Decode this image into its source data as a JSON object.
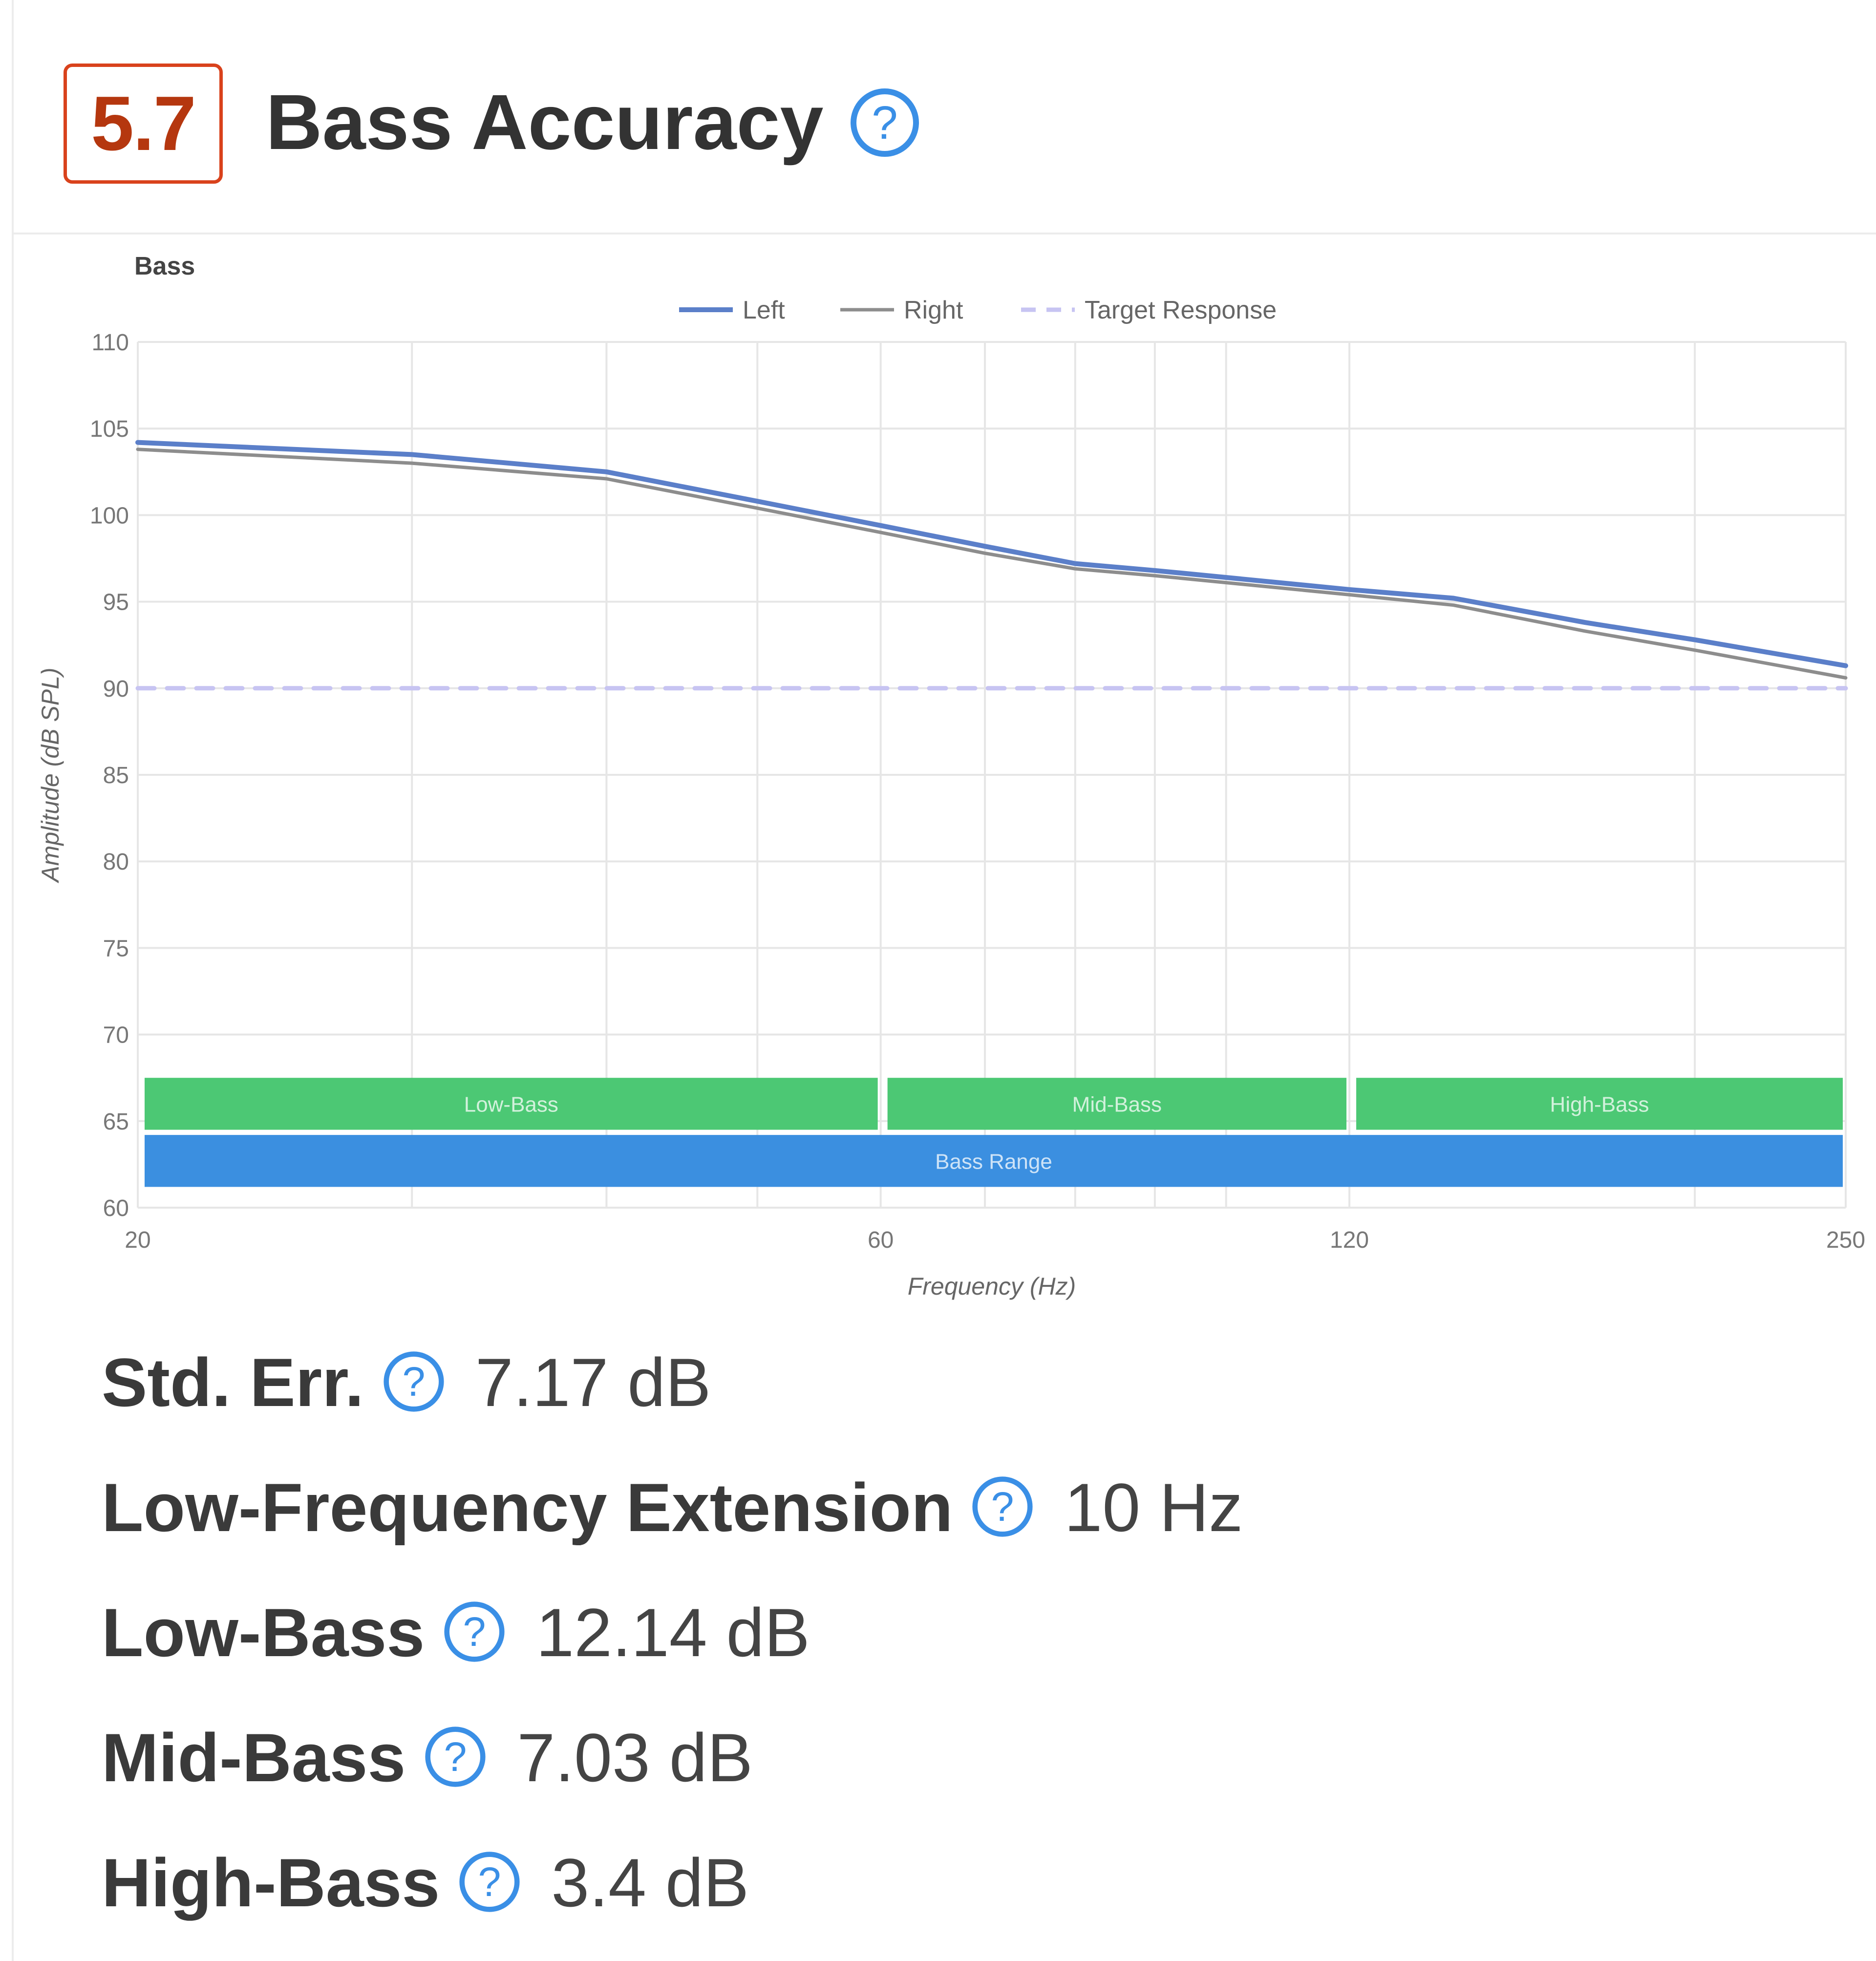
{
  "header": {
    "score": "5.7",
    "title": "Bass Accuracy",
    "help_icon": "question-circle-icon"
  },
  "colors": {
    "score_border": "#d9421c",
    "score_text": "#b5370f",
    "help_icon": "#3a8fe6",
    "left_line": "#5b7fc9",
    "right_line": "#8d8d8d",
    "target_line": "#c7c4f2",
    "band_green": "#4cc874",
    "band_blue": "#3b8fe0"
  },
  "chart_data": {
    "type": "line",
    "title": "Bass",
    "xlabel": "Frequency (Hz)",
    "ylabel": "Amplitude (dB SPL)",
    "x_scale": "log",
    "xlim": [
      20,
      250
    ],
    "ylim": [
      60,
      110
    ],
    "x_ticks": [
      "20",
      "60",
      "120",
      "250"
    ],
    "y_ticks": [
      "110",
      "105",
      "100",
      "95",
      "90",
      "85",
      "80",
      "75",
      "70",
      "65",
      "60"
    ],
    "grid": true,
    "legend_position": "top-center",
    "legend": [
      "Left",
      "Right",
      "Target Response"
    ],
    "series": [
      {
        "name": "Left",
        "x": [
          20,
          30,
          40,
          50,
          60,
          70,
          80,
          90,
          100,
          120,
          140,
          170,
          200,
          250
        ],
        "y": [
          104.2,
          103.5,
          102.5,
          100.8,
          99.4,
          98.2,
          97.2,
          96.8,
          96.4,
          95.7,
          95.2,
          93.8,
          92.8,
          91.3
        ]
      },
      {
        "name": "Right",
        "x": [
          20,
          30,
          40,
          50,
          60,
          70,
          80,
          90,
          100,
          120,
          140,
          170,
          200,
          250
        ],
        "y": [
          103.8,
          103.0,
          102.1,
          100.4,
          99.0,
          97.8,
          96.9,
          96.5,
          96.1,
          95.4,
          94.8,
          93.3,
          92.2,
          90.6
        ]
      },
      {
        "name": "Target Response",
        "x": [
          20,
          250
        ],
        "y": [
          90,
          90
        ]
      }
    ],
    "bands": [
      {
        "label": "Low-Bass",
        "from": 20,
        "to": 60,
        "row": "upper"
      },
      {
        "label": "Mid-Bass",
        "from": 60,
        "to": 120,
        "row": "upper"
      },
      {
        "label": "High-Bass",
        "from": 120,
        "to": 250,
        "row": "upper"
      },
      {
        "label": "Bass Range",
        "from": 20,
        "to": 250,
        "row": "lower"
      }
    ]
  },
  "metrics": [
    {
      "label": "Std. Err.",
      "value": "7.17 dB"
    },
    {
      "label": "Low-Frequency Extension",
      "value": "10 Hz"
    },
    {
      "label": "Low-Bass",
      "value": "12.14 dB"
    },
    {
      "label": "Mid-Bass",
      "value": "7.03 dB"
    },
    {
      "label": "High-Bass",
      "value": "3.4 dB"
    }
  ]
}
